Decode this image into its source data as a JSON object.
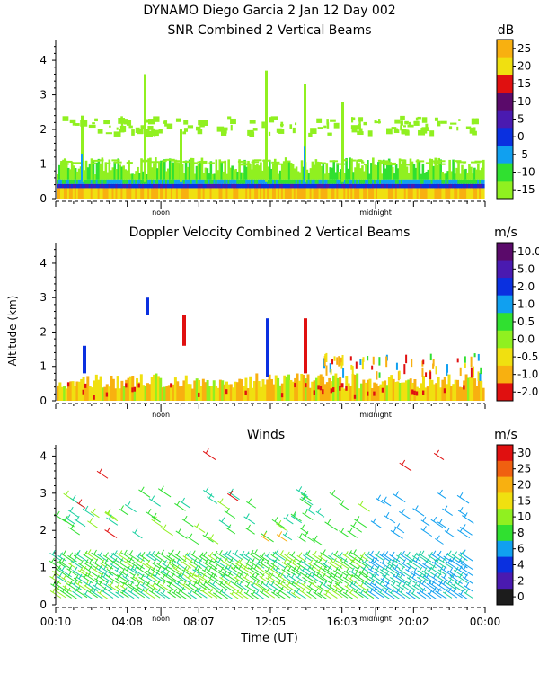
{
  "header": {
    "line1": "DYNAMO Diego Garcia    2 Jan 12 Day 002"
  },
  "y_axis_label": "Altitude (km)",
  "x_axis": {
    "label": "Time (UT)",
    "ticks": [
      "00:10",
      "04:08",
      "08:07",
      "12:05",
      "16:03",
      "20:02",
      "00:00"
    ],
    "day_markers": [
      "noon",
      "midnight"
    ]
  },
  "colors": {
    "palette": [
      "#1c1c1c",
      "#5a0a6a",
      "#4a1ab0",
      "#0a30e0",
      "#10a0f0",
      "#18d0a0",
      "#30e030",
      "#90f020",
      "#f0e010",
      "#f8b010",
      "#f06010",
      "#e01010"
    ]
  },
  "chart_data": [
    {
      "type": "heatmap",
      "title": "SNR Combined 2 Vertical Beams",
      "unit": "dB",
      "colorbar_ticks": [
        "25",
        "20",
        "15",
        "10",
        "5",
        "0",
        "-5",
        "-10",
        "-15"
      ],
      "colorbar_colors": [
        "#f8b010",
        "#f0e010",
        "#e01010",
        "#5a0a6a",
        "#4a1ab0",
        "#0a30e0",
        "#10a0f0",
        "#30e030",
        "#90f020"
      ],
      "ylim": [
        0,
        4.6
      ],
      "yticks": [
        "0",
        "1",
        "2",
        "3",
        "4"
      ],
      "layers": [
        {
          "alt": [
            0.0,
            0.2
          ],
          "level": "25"
        },
        {
          "alt": [
            0.2,
            0.4
          ],
          "level": "0"
        },
        {
          "alt": [
            0.4,
            0.55
          ],
          "level": "-10"
        },
        {
          "alt": [
            0.55,
            1.1
          ],
          "level": "-15"
        }
      ]
    },
    {
      "type": "heatmap",
      "title": "Doppler Velocity Combined 2 Vertical Beams",
      "unit": "m/s",
      "colorbar_ticks": [
        "10.0",
        "5.0",
        "2.0",
        "1.0",
        "0.5",
        "0.0",
        "-0.5",
        "-1.0",
        "-2.0"
      ],
      "colorbar_colors": [
        "#5a0a6a",
        "#4a1ab0",
        "#0a30e0",
        "#10a0f0",
        "#30e030",
        "#90f020",
        "#f0e010",
        "#f8b010",
        "#e01010"
      ],
      "ylim": [
        0,
        4.6
      ],
      "yticks": [
        "0",
        "1",
        "2",
        "3",
        "4"
      ]
    },
    {
      "type": "scatter",
      "title": "Winds",
      "unit": "m/s",
      "colorbar_ticks": [
        "30",
        "25",
        "20",
        "15",
        "10",
        "8",
        "6",
        "4",
        "2",
        "0"
      ],
      "colorbar_colors": [
        "#e01010",
        "#f06010",
        "#f8b010",
        "#f0e010",
        "#90f020",
        "#30e030",
        "#10a0f0",
        "#0a30e0",
        "#4a1ab0",
        "#1c1c1c"
      ],
      "ylim": [
        0,
        4.3
      ],
      "yticks": [
        "0",
        "1",
        "2",
        "3",
        "4"
      ]
    }
  ]
}
